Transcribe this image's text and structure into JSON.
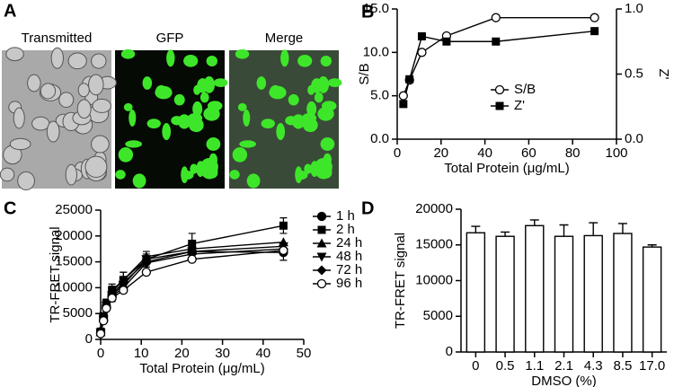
{
  "panel_a": {
    "panel_label": "A",
    "captions": [
      "Transmitted",
      "GFP",
      "Merge"
    ]
  },
  "chart_data": [
    {
      "type": "line",
      "panel_label": "B",
      "xlabel": "Total Protein (μg/mL)",
      "ylabel": "S/B",
      "y2label": "Z'",
      "x": [
        2.8,
        5.6,
        11.25,
        22.5,
        45,
        90
      ],
      "xlim": [
        0,
        100
      ],
      "xticks": [
        0,
        20,
        40,
        60,
        80,
        100
      ],
      "ylim": [
        0,
        15
      ],
      "yticks": [
        {
          "value": 0,
          "label": "0.0"
        },
        {
          "value": 5,
          "label": "5.0"
        },
        {
          "value": 10,
          "label": "10.0"
        },
        {
          "value": 15,
          "label": "15.0"
        }
      ],
      "y2lim": [
        0,
        1
      ],
      "y2ticks": [
        {
          "value": 0,
          "label": "0.0"
        },
        {
          "value": 0.5,
          "label": "0.5"
        },
        {
          "value": 1,
          "label": "1.0"
        }
      ],
      "legend": "lower right",
      "series": [
        {
          "name": "S/B",
          "color": "#000000",
          "marker": "open-circle",
          "values": [
            5.0,
            6.8,
            10.0,
            11.9,
            14.0,
            14.0
          ]
        },
        {
          "name": "Z'",
          "color": "#000000",
          "marker": "square",
          "axis": "y2",
          "values": [
            0.27,
            0.46,
            0.79,
            0.75,
            0.75,
            0.83
          ]
        }
      ]
    },
    {
      "type": "line",
      "panel_label": "C",
      "xlabel": "Total Protein (μg/mL)",
      "ylabel": "TR-FRET signal",
      "x": [
        0,
        0.7,
        1.4,
        2.8,
        5.6,
        11.25,
        22.5,
        45
      ],
      "xlim": [
        0,
        50
      ],
      "xticks": [
        0,
        10,
        20,
        30,
        40,
        50
      ],
      "ylim": [
        0,
        25000
      ],
      "yticks": [
        0,
        5000,
        10000,
        15000,
        20000,
        25000
      ],
      "legend": "right",
      "series": [
        {
          "name": "1 h",
          "color": "#000000",
          "marker": "circle",
          "values": [
            1500,
            4300,
            6500,
            8800,
            11000,
            15000,
            17000,
            16800
          ],
          "errors": [
            500,
            800,
            900,
            1500,
            2000,
            1500,
            1500,
            1500
          ]
        },
        {
          "name": "2 h",
          "color": "#000000",
          "marker": "square",
          "values": [
            1500,
            4500,
            7000,
            9500,
            11500,
            15500,
            18500,
            22000
          ],
          "errors": [
            400,
            700,
            800,
            1200,
            1500,
            1500,
            2000,
            1500
          ]
        },
        {
          "name": "24 h",
          "color": "#000000",
          "marker": "triangle-up",
          "values": [
            1400,
            4200,
            6800,
            9200,
            11500,
            16000,
            17500,
            18800
          ]
        },
        {
          "name": "48 h",
          "color": "#000000",
          "marker": "triangle-down",
          "values": [
            1300,
            4000,
            6500,
            8600,
            10500,
            15500,
            17000,
            18000
          ]
        },
        {
          "name": "72 h",
          "color": "#000000",
          "marker": "diamond",
          "values": [
            1200,
            3800,
            6200,
            8300,
            10000,
            14800,
            16500,
            17500
          ]
        },
        {
          "name": "96 h",
          "color": "#000000",
          "marker": "open-circle",
          "values": [
            1100,
            3600,
            6000,
            8000,
            9500,
            13000,
            15500,
            17200
          ]
        }
      ]
    },
    {
      "type": "bar",
      "panel_label": "D",
      "xlabel": "DMSO (%)",
      "ylabel": "TR-FRET signal",
      "categories": [
        "0",
        "0.5",
        "1.1",
        "2.1",
        "4.3",
        "8.5",
        "17.0"
      ],
      "values": [
        16700,
        16200,
        17700,
        16200,
        16300,
        16600,
        14700
      ],
      "errors": [
        900,
        600,
        800,
        1600,
        1800,
        1400,
        300
      ],
      "color": "#ffffff",
      "ylim": [
        0,
        20000
      ],
      "yticks": [
        0,
        5000,
        10000,
        15000,
        20000
      ]
    }
  ]
}
